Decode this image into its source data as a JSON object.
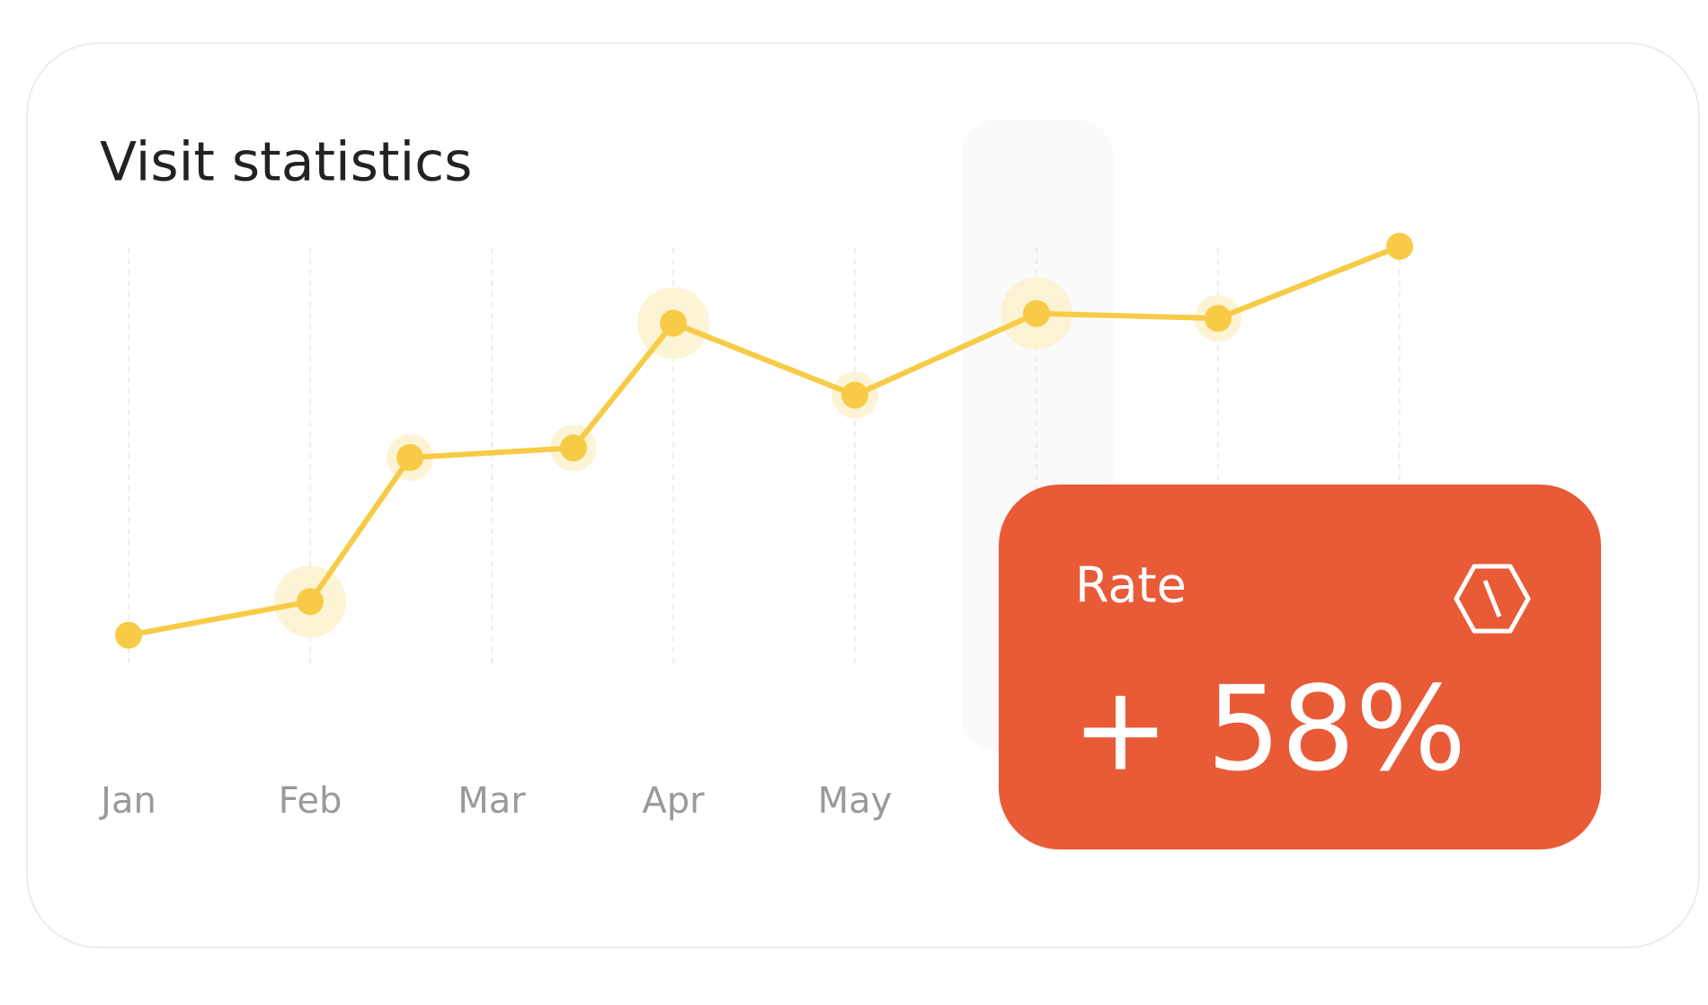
{
  "chart_data": {
    "type": "line",
    "title": "Visit statistics",
    "x": [
      0,
      1,
      1.55,
      2.45,
      3,
      4,
      5,
      6,
      7
    ],
    "series": [
      {
        "color": "#f7cb45",
        "values": [
          13,
          20,
          50,
          52,
          78,
          63,
          80,
          79,
          94
        ]
      }
    ],
    "xlim": [
      0,
      7
    ],
    "xticks": [
      {
        "value": 0,
        "label": "Jan"
      },
      {
        "value": 1,
        "label": "Feb"
      },
      {
        "value": 2,
        "label": "Mar"
      },
      {
        "value": 3,
        "label": "Apr"
      },
      {
        "value": 4,
        "label": "May"
      },
      {
        "value": 5,
        "label": null
      },
      {
        "value": 6,
        "label": null
      },
      {
        "value": 7,
        "label": null
      }
    ],
    "ylim": [
      0,
      100
    ],
    "grid": true
  },
  "rate_card": {
    "label": "Rate",
    "value": "+ 58%",
    "color": "#e95a37"
  }
}
